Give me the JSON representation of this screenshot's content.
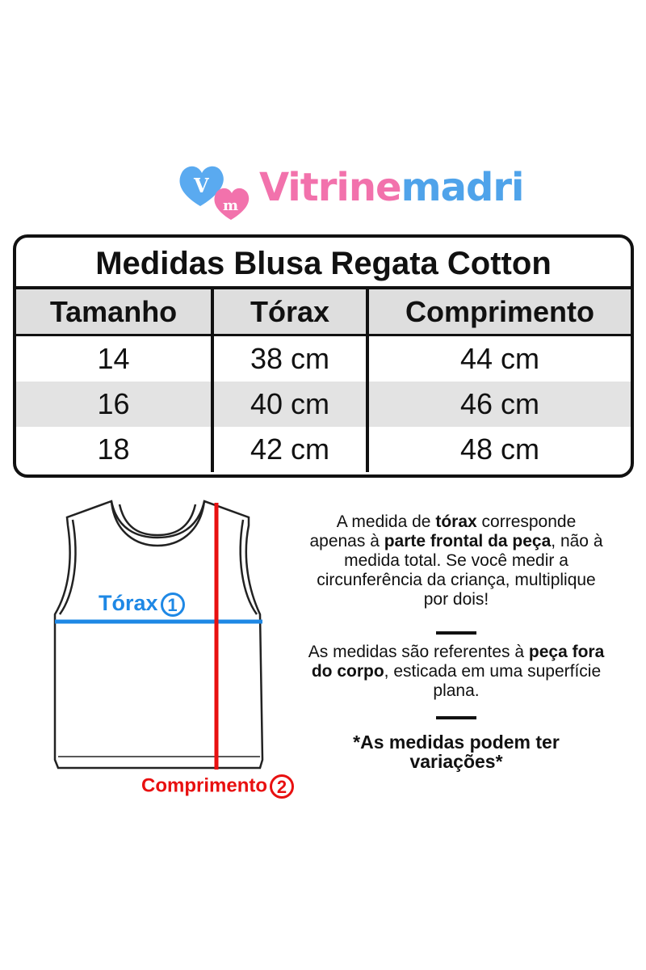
{
  "logo": {
    "text_part1": "Vitrine",
    "text_part2": "madri",
    "heart1_letter": "V",
    "heart2_letter": "m",
    "colors": {
      "pink": "#f272ac",
      "blue": "#4fa3ea"
    }
  },
  "table": {
    "title": "Medidas Blusa Regata Cotton",
    "headers": [
      "Tamanho",
      "Tórax",
      "Comprimento"
    ],
    "rows": [
      [
        "14",
        "38 cm",
        "44 cm"
      ],
      [
        "16",
        "40 cm",
        "46 cm"
      ],
      [
        "18",
        "42 cm",
        "48 cm"
      ]
    ]
  },
  "diagram": {
    "torax_label": "Tórax",
    "torax_num": "1",
    "torax_color": "#1e88e5",
    "comprimento_label": "Comprimento",
    "comprimento_num": "2",
    "comprimento_color": "#e81010"
  },
  "info": {
    "p1": {
      "a": "A medida de ",
      "b": "tórax",
      "c": " corresponde apenas à ",
      "d": "parte frontal da peça",
      "e": ", não à medida total. Se você medir a circunferência da criança, multiplique por dois!"
    },
    "p2": {
      "a": "As medidas são referentes à ",
      "b": "peça fora do corpo",
      "c": ", esticada em uma superfície plana."
    },
    "p3": "*As medidas podem ter variações*"
  }
}
